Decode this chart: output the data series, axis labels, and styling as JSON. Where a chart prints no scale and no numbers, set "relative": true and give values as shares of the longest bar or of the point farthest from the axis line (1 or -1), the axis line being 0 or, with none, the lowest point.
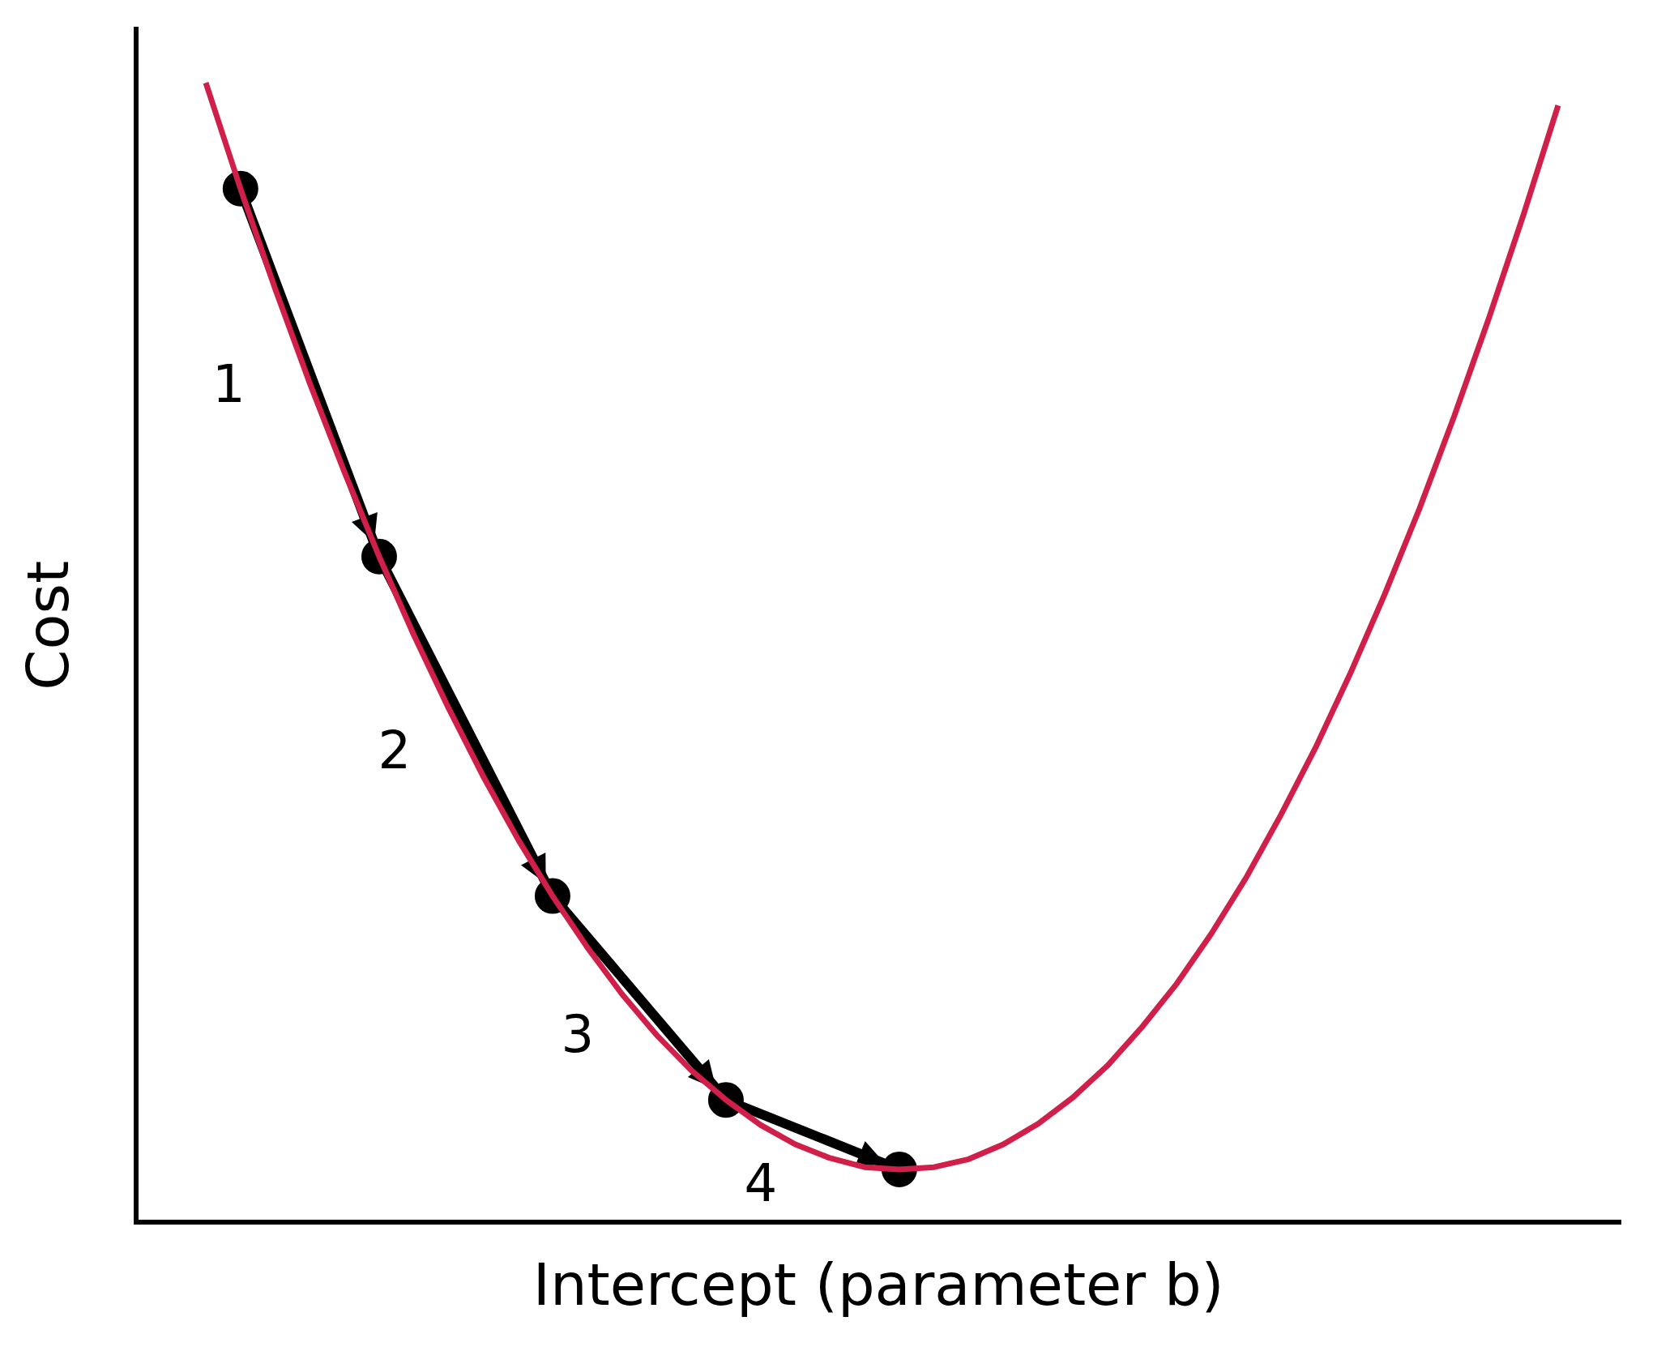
{
  "chart_data": {
    "type": "line",
    "relative": true,
    "xlabel": "Intercept (parameter b)",
    "ylabel": "Cost",
    "legend": false,
    "grid": false,
    "categories": [
      null,
      null,
      null,
      null,
      null,
      null,
      null,
      null,
      null,
      null,
      null,
      null,
      null,
      null,
      null,
      null,
      null,
      null,
      null,
      null,
      null,
      null,
      null,
      null,
      null,
      null,
      null,
      null,
      null,
      null,
      null,
      null,
      null,
      null,
      null,
      null,
      null,
      null,
      null,
      null
    ],
    "series": [
      {
        "color": "#d0204a",
        "marker": "none",
        "values": [
          1.0,
          0.907,
          0.819,
          0.736,
          0.658,
          0.584,
          0.515,
          0.451,
          0.391,
          0.336,
          0.286,
          0.241,
          0.2,
          0.164,
          0.133,
          0.107,
          0.085,
          0.068,
          0.056,
          0.048,
          0.046,
          0.048,
          0.055,
          0.068,
          0.086,
          0.109,
          0.137,
          0.171,
          0.209,
          0.253,
          0.302,
          0.357,
          0.416,
          0.481,
          0.551,
          0.626,
          0.707,
          0.793,
          0.884,
          0.98
        ]
      },
      {
        "color": "#000000",
        "marker": "circle",
        "values": [
          null,
          0.907,
          null,
          null,
          null,
          0.584,
          null,
          null,
          null,
          null,
          0.286,
          null,
          null,
          null,
          null,
          0.107,
          null,
          null,
          null,
          null,
          0.046,
          null,
          null,
          null,
          null,
          null,
          null,
          null,
          null,
          null,
          null,
          null,
          null,
          null,
          null,
          null,
          null,
          null,
          null,
          null
        ]
      }
    ],
    "annotations": [
      "1",
      "2",
      "3",
      "4"
    ]
  }
}
